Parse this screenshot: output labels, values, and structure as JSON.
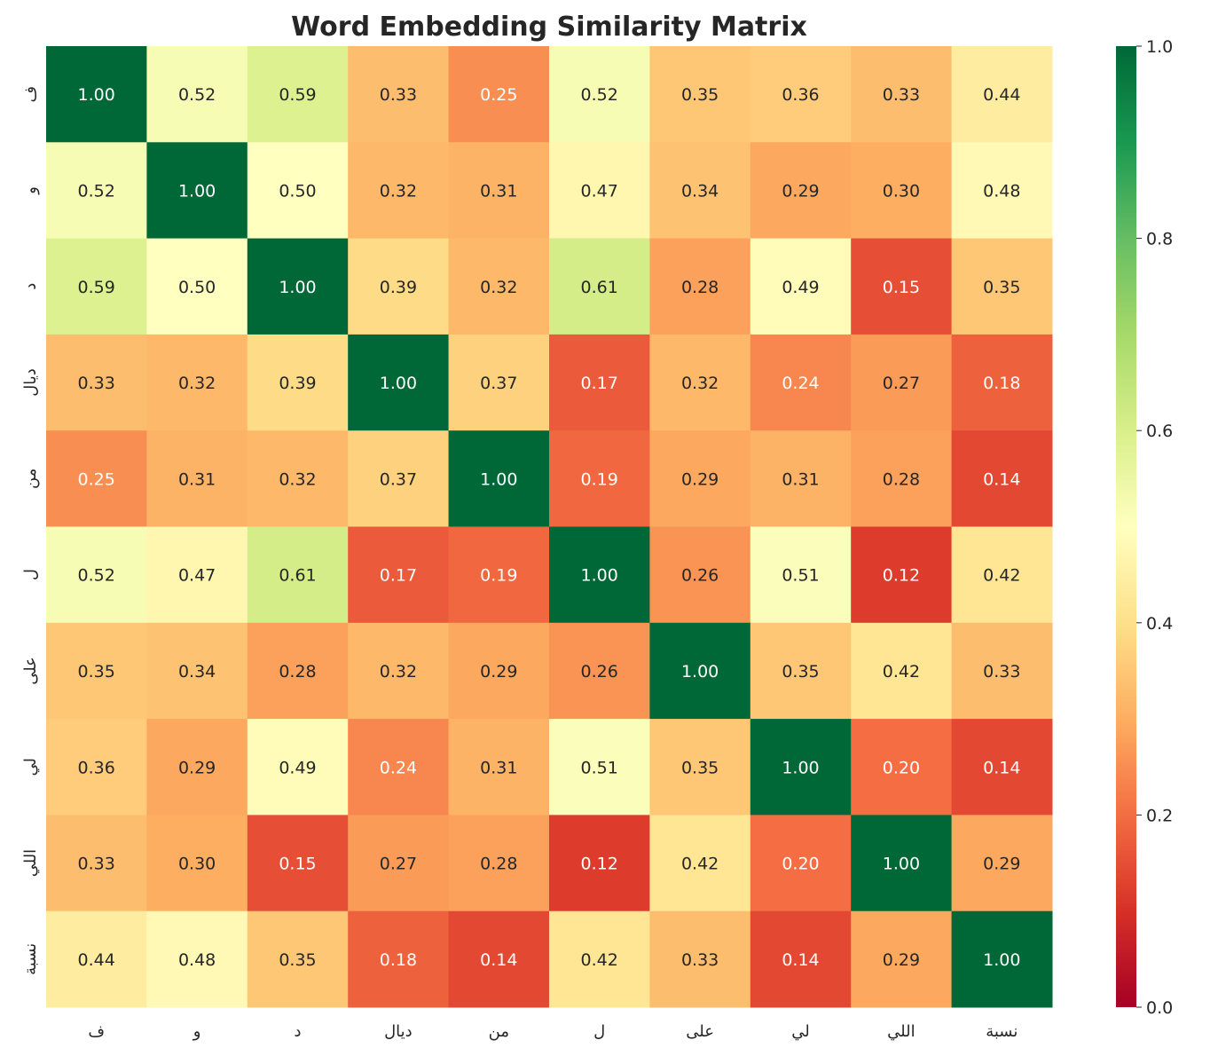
{
  "chart_data": {
    "type": "heatmap",
    "title": "Word Embedding Similarity Matrix",
    "x_labels": [
      "ف",
      "و",
      "د",
      "ديال",
      "من",
      "ل",
      "على",
      "لي",
      "اللي",
      "نسبة"
    ],
    "y_labels": [
      "ف",
      "و",
      "د",
      "ديال",
      "من",
      "ل",
      "على",
      "لي",
      "اللي",
      "نسبة"
    ],
    "values": [
      [
        1.0,
        0.52,
        0.59,
        0.33,
        0.25,
        0.52,
        0.35,
        0.36,
        0.33,
        0.44
      ],
      [
        0.52,
        1.0,
        0.5,
        0.32,
        0.31,
        0.47,
        0.34,
        0.29,
        0.3,
        0.48
      ],
      [
        0.59,
        0.5,
        1.0,
        0.39,
        0.32,
        0.61,
        0.28,
        0.49,
        0.15,
        0.35
      ],
      [
        0.33,
        0.32,
        0.39,
        1.0,
        0.37,
        0.17,
        0.32,
        0.24,
        0.27,
        0.18
      ],
      [
        0.25,
        0.31,
        0.32,
        0.37,
        1.0,
        0.19,
        0.29,
        0.31,
        0.28,
        0.14
      ],
      [
        0.52,
        0.47,
        0.61,
        0.17,
        0.19,
        1.0,
        0.26,
        0.51,
        0.12,
        0.42
      ],
      [
        0.35,
        0.34,
        0.28,
        0.32,
        0.29,
        0.26,
        1.0,
        0.35,
        0.42,
        0.33
      ],
      [
        0.36,
        0.29,
        0.49,
        0.24,
        0.31,
        0.51,
        0.35,
        1.0,
        0.2,
        0.14
      ],
      [
        0.33,
        0.3,
        0.15,
        0.27,
        0.28,
        0.12,
        0.42,
        0.2,
        1.0,
        0.29
      ],
      [
        0.44,
        0.48,
        0.35,
        0.18,
        0.14,
        0.42,
        0.33,
        0.14,
        0.29,
        1.0
      ]
    ],
    "colormap": "RdYlGn",
    "colormap_stops": [
      "#a50026",
      "#d73027",
      "#f46d43",
      "#fdae61",
      "#fee08b",
      "#ffffbf",
      "#d9ef8b",
      "#a6d96a",
      "#66bd63",
      "#1a9850",
      "#006837"
    ],
    "vmin": 0.0,
    "vmax": 1.0,
    "colorbar_ticks": [
      "0.0",
      "0.2",
      "0.4",
      "0.6",
      "0.8",
      "1.0"
    ],
    "annotation_format": "2 decimals"
  }
}
